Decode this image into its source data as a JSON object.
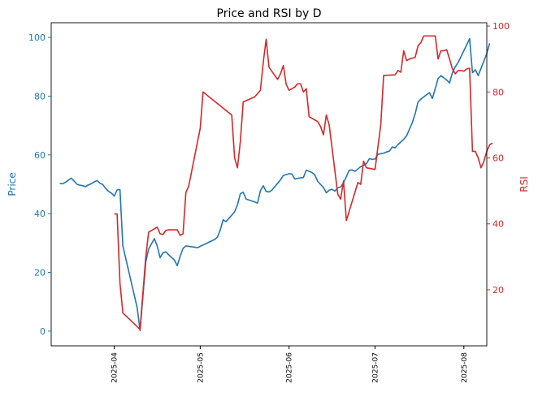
{
  "chart_data": {
    "type": "line",
    "title": "Price and RSI by D",
    "y_left": {
      "label": "Price",
      "lim": [
        -5,
        105
      ],
      "ticks": [
        0,
        20,
        40,
        60,
        80,
        100
      ],
      "color": "#1f77b4"
    },
    "y_right": {
      "label": "RSI",
      "lim": [
        3,
        101
      ],
      "ticks": [
        20,
        40,
        60,
        80,
        100
      ],
      "color": "#d62728"
    },
    "x_ticks": [
      "2025-04",
      "2025-05",
      "2025-06",
      "2025-07",
      "2025-08"
    ],
    "x_range": [
      "2025-03-10",
      "2025-08-09"
    ],
    "series": [
      {
        "name": "Price",
        "axis": "left",
        "color": "#1f77b4",
        "points": [
          [
            "2025-03-13",
            50.3
          ],
          [
            "2025-03-14",
            50.2
          ],
          [
            "2025-03-15",
            50.7
          ],
          [
            "2025-03-16",
            51.4
          ],
          [
            "2025-03-17",
            52.1
          ],
          [
            "2025-03-18",
            51.1
          ],
          [
            "2025-03-19",
            50.0
          ],
          [
            "2025-03-20",
            49.7
          ],
          [
            "2025-03-21",
            49.5
          ],
          [
            "2025-03-22",
            49.2
          ],
          [
            "2025-03-23",
            49.8
          ],
          [
            "2025-03-24",
            50.2
          ],
          [
            "2025-03-25",
            50.8
          ],
          [
            "2025-03-26",
            51.3
          ],
          [
            "2025-03-27",
            50.4
          ],
          [
            "2025-03-28",
            49.9
          ],
          [
            "2025-03-29",
            48.6
          ],
          [
            "2025-03-30",
            47.6
          ],
          [
            "2025-03-31",
            47.0
          ],
          [
            "2025-04-01",
            46.0
          ],
          [
            "2025-04-02",
            48.1
          ],
          [
            "2025-04-03",
            48.2
          ],
          [
            "2025-04-04",
            29.0
          ],
          [
            "2025-04-09",
            8.0
          ],
          [
            "2025-04-10",
            0.2
          ],
          [
            "2025-04-12",
            23.5
          ],
          [
            "2025-04-13",
            28.0
          ],
          [
            "2025-04-15",
            31.5
          ],
          [
            "2025-04-16",
            29.0
          ],
          [
            "2025-04-17",
            25.0
          ],
          [
            "2025-04-18",
            26.7
          ],
          [
            "2025-04-19",
            27.0
          ],
          [
            "2025-04-20",
            26.0
          ],
          [
            "2025-04-22",
            24.2
          ],
          [
            "2025-04-23",
            22.3
          ],
          [
            "2025-04-24",
            25.5
          ],
          [
            "2025-04-25",
            28.2
          ],
          [
            "2025-04-26",
            29.0
          ],
          [
            "2025-04-29",
            28.6
          ],
          [
            "2025-04-30",
            28.4
          ],
          [
            "2025-05-06",
            31.2
          ],
          [
            "2025-05-07",
            32.0
          ],
          [
            "2025-05-08",
            34.5
          ],
          [
            "2025-05-09",
            37.9
          ],
          [
            "2025-05-10",
            37.3
          ],
          [
            "2025-05-13",
            40.6
          ],
          [
            "2025-05-14",
            43.0
          ],
          [
            "2025-05-15",
            46.8
          ],
          [
            "2025-05-16",
            47.3
          ],
          [
            "2025-05-17",
            45.0
          ],
          [
            "2025-05-20",
            44.0
          ],
          [
            "2025-05-21",
            43.6
          ],
          [
            "2025-05-22",
            47.8
          ],
          [
            "2025-05-23",
            49.5
          ],
          [
            "2025-05-24",
            47.6
          ],
          [
            "2025-05-25",
            47.4
          ],
          [
            "2025-05-26",
            48.0
          ],
          [
            "2025-05-29",
            51.5
          ],
          [
            "2025-05-30",
            53.0
          ],
          [
            "2025-06-01",
            53.6
          ],
          [
            "2025-06-02",
            53.5
          ],
          [
            "2025-06-03",
            51.8
          ],
          [
            "2025-06-05",
            52.2
          ],
          [
            "2025-06-06",
            52.3
          ],
          [
            "2025-06-07",
            54.8
          ],
          [
            "2025-06-09",
            54.0
          ],
          [
            "2025-06-10",
            53.2
          ],
          [
            "2025-06-11",
            51.0
          ],
          [
            "2025-06-13",
            48.9
          ],
          [
            "2025-06-14",
            47.1
          ],
          [
            "2025-06-15",
            48.0
          ],
          [
            "2025-06-16",
            48.3
          ],
          [
            "2025-06-17",
            47.7
          ],
          [
            "2025-06-18",
            48.8
          ],
          [
            "2025-06-19",
            49.1
          ],
          [
            "2025-06-20",
            50.5
          ],
          [
            "2025-06-21",
            52.6
          ],
          [
            "2025-06-22",
            54.8
          ],
          [
            "2025-06-23",
            54.9
          ],
          [
            "2025-06-24",
            54.4
          ],
          [
            "2025-06-25",
            55.2
          ],
          [
            "2025-06-26",
            56.0
          ],
          [
            "2025-06-27",
            56.4
          ],
          [
            "2025-06-28",
            57.0
          ],
          [
            "2025-06-29",
            58.7
          ],
          [
            "2025-06-30",
            58.5
          ],
          [
            "2025-07-01",
            58.6
          ],
          [
            "2025-07-02",
            60.2
          ],
          [
            "2025-07-04",
            60.6
          ],
          [
            "2025-07-05",
            61.0
          ],
          [
            "2025-07-06",
            61.3
          ],
          [
            "2025-07-07",
            62.7
          ],
          [
            "2025-07-08",
            62.4
          ],
          [
            "2025-07-09",
            63.5
          ],
          [
            "2025-07-11",
            65.3
          ],
          [
            "2025-07-12",
            66.5
          ],
          [
            "2025-07-14",
            71.0
          ],
          [
            "2025-07-15",
            74.0
          ],
          [
            "2025-07-16",
            78.0
          ],
          [
            "2025-07-17",
            79.0
          ],
          [
            "2025-07-19",
            80.5
          ],
          [
            "2025-07-20",
            81.2
          ],
          [
            "2025-07-21",
            79.2
          ],
          [
            "2025-07-22",
            82.5
          ],
          [
            "2025-07-23",
            86.0
          ],
          [
            "2025-07-24",
            87.0
          ],
          [
            "2025-07-26",
            85.5
          ],
          [
            "2025-07-27",
            84.5
          ],
          [
            "2025-07-28",
            88.0
          ],
          [
            "2025-07-29",
            90.0
          ],
          [
            "2025-07-30",
            91.5
          ],
          [
            "2025-07-31",
            93.5
          ],
          [
            "2025-08-01",
            95.5
          ],
          [
            "2025-08-02",
            97.5
          ],
          [
            "2025-08-03",
            99.6
          ],
          [
            "2025-08-04",
            88.0
          ],
          [
            "2025-08-05",
            89.0
          ],
          [
            "2025-08-06",
            87.0
          ],
          [
            "2025-08-07",
            89.5
          ],
          [
            "2025-08-08",
            92.0
          ],
          [
            "2025-08-09",
            94.5
          ],
          [
            "2025-08-10",
            98.0
          ]
        ]
      },
      {
        "name": "RSI",
        "axis": "right",
        "color": "#d62728",
        "points": [
          [
            "2025-04-01",
            43.0
          ],
          [
            "2025-04-02",
            43.0
          ],
          [
            "2025-04-03",
            22.0
          ],
          [
            "2025-04-04",
            13.0
          ],
          [
            "2025-04-10",
            8.0
          ],
          [
            "2025-04-12",
            30.0
          ],
          [
            "2025-04-13",
            37.5
          ],
          [
            "2025-04-15",
            38.5
          ],
          [
            "2025-04-16",
            39.0
          ],
          [
            "2025-04-17",
            37.0
          ],
          [
            "2025-04-18",
            36.8
          ],
          [
            "2025-04-19",
            38.0
          ],
          [
            "2025-04-20",
            38.2
          ],
          [
            "2025-04-23",
            38.2
          ],
          [
            "2025-04-24",
            36.5
          ],
          [
            "2025-04-25",
            37.0
          ],
          [
            "2025-04-26",
            49.5
          ],
          [
            "2025-04-27",
            51.5
          ],
          [
            "2025-05-01",
            69.0
          ],
          [
            "2025-05-02",
            80.0
          ],
          [
            "2025-05-12",
            73.0
          ],
          [
            "2025-05-13",
            60.0
          ],
          [
            "2025-05-14",
            57.0
          ],
          [
            "2025-05-15",
            65.0
          ],
          [
            "2025-05-16",
            77.0
          ],
          [
            "2025-05-20",
            78.5
          ],
          [
            "2025-05-22",
            80.5
          ],
          [
            "2025-05-23",
            89.0
          ],
          [
            "2025-05-24",
            96.0
          ],
          [
            "2025-05-25",
            87.5
          ],
          [
            "2025-05-28",
            83.8
          ],
          [
            "2025-05-29",
            85.5
          ],
          [
            "2025-05-30",
            88.0
          ],
          [
            "2025-05-31",
            82.3
          ],
          [
            "2025-06-01",
            80.5
          ],
          [
            "2025-06-03",
            81.5
          ],
          [
            "2025-06-04",
            82.5
          ],
          [
            "2025-06-05",
            82.5
          ],
          [
            "2025-06-06",
            80.0
          ],
          [
            "2025-06-07",
            81.0
          ],
          [
            "2025-06-08",
            72.5
          ],
          [
            "2025-06-11",
            71.0
          ],
          [
            "2025-06-12",
            69.5
          ],
          [
            "2025-06-13",
            67.0
          ],
          [
            "2025-06-14",
            73.0
          ],
          [
            "2025-06-15",
            70.0
          ],
          [
            "2025-06-18",
            49.0
          ],
          [
            "2025-06-19",
            47.5
          ],
          [
            "2025-06-20",
            53.0
          ],
          [
            "2025-06-21",
            41.0
          ],
          [
            "2025-06-25",
            52.5
          ],
          [
            "2025-06-26",
            52.0
          ],
          [
            "2025-06-27",
            59.0
          ],
          [
            "2025-06-28",
            57.0
          ],
          [
            "2025-07-01",
            56.5
          ],
          [
            "2025-07-03",
            70.0
          ],
          [
            "2025-07-04",
            85.0
          ],
          [
            "2025-07-08",
            85.2
          ],
          [
            "2025-07-09",
            86.5
          ],
          [
            "2025-07-10",
            86.0
          ],
          [
            "2025-07-11",
            92.5
          ],
          [
            "2025-07-12",
            89.5
          ],
          [
            "2025-07-13",
            90.0
          ],
          [
            "2025-07-15",
            90.5
          ],
          [
            "2025-07-16",
            94.0
          ],
          [
            "2025-07-17",
            95.0
          ],
          [
            "2025-07-18",
            97.0
          ],
          [
            "2025-07-22",
            97.0
          ],
          [
            "2025-07-23",
            90.0
          ],
          [
            "2025-07-24",
            92.5
          ],
          [
            "2025-07-25",
            92.5
          ],
          [
            "2025-07-26",
            92.8
          ],
          [
            "2025-07-27",
            90.0
          ],
          [
            "2025-07-28",
            87.0
          ],
          [
            "2025-07-29",
            85.5
          ],
          [
            "2025-07-30",
            86.5
          ],
          [
            "2025-07-31",
            86.5
          ],
          [
            "2025-08-01",
            86.3
          ],
          [
            "2025-08-02",
            87.0
          ],
          [
            "2025-08-03",
            87.2
          ],
          [
            "2025-08-04",
            62.0
          ],
          [
            "2025-08-05",
            62.0
          ],
          [
            "2025-08-06",
            60.0
          ],
          [
            "2025-08-07",
            57.0
          ],
          [
            "2025-08-08",
            59.0
          ],
          [
            "2025-08-09",
            62.0
          ],
          [
            "2025-08-10",
            64.0
          ],
          [
            "2025-08-11",
            64.5
          ]
        ]
      }
    ],
    "grid": false,
    "legend": "none"
  }
}
